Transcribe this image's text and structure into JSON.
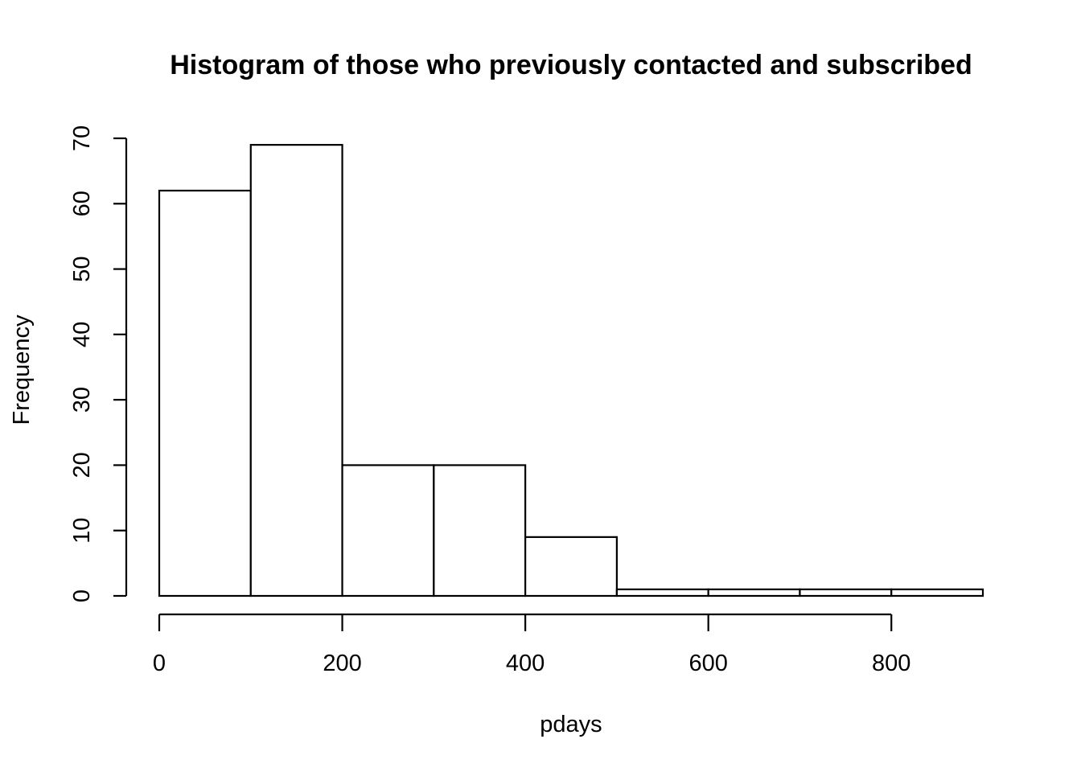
{
  "chart_data": {
    "type": "bar",
    "title": "Histogram of those who previously contacted and subscribed",
    "xlabel": "pdays",
    "ylabel": "Frequency",
    "bins": [
      {
        "start": 0,
        "end": 100,
        "count": 62
      },
      {
        "start": 100,
        "end": 200,
        "count": 69
      },
      {
        "start": 200,
        "end": 300,
        "count": 20
      },
      {
        "start": 300,
        "end": 400,
        "count": 20
      },
      {
        "start": 400,
        "end": 500,
        "count": 9
      },
      {
        "start": 500,
        "end": 600,
        "count": 1
      },
      {
        "start": 600,
        "end": 700,
        "count": 1
      },
      {
        "start": 700,
        "end": 800,
        "count": 1
      },
      {
        "start": 800,
        "end": 900,
        "count": 1
      }
    ],
    "xticks": [
      0,
      200,
      400,
      600,
      800
    ],
    "yticks": [
      0,
      10,
      20,
      30,
      40,
      50,
      60,
      70
    ],
    "xlim": [
      0,
      900
    ],
    "ylim": [
      0,
      70
    ],
    "grid": false,
    "colors": {
      "fill": "#ffffff",
      "stroke": "#000000"
    }
  }
}
